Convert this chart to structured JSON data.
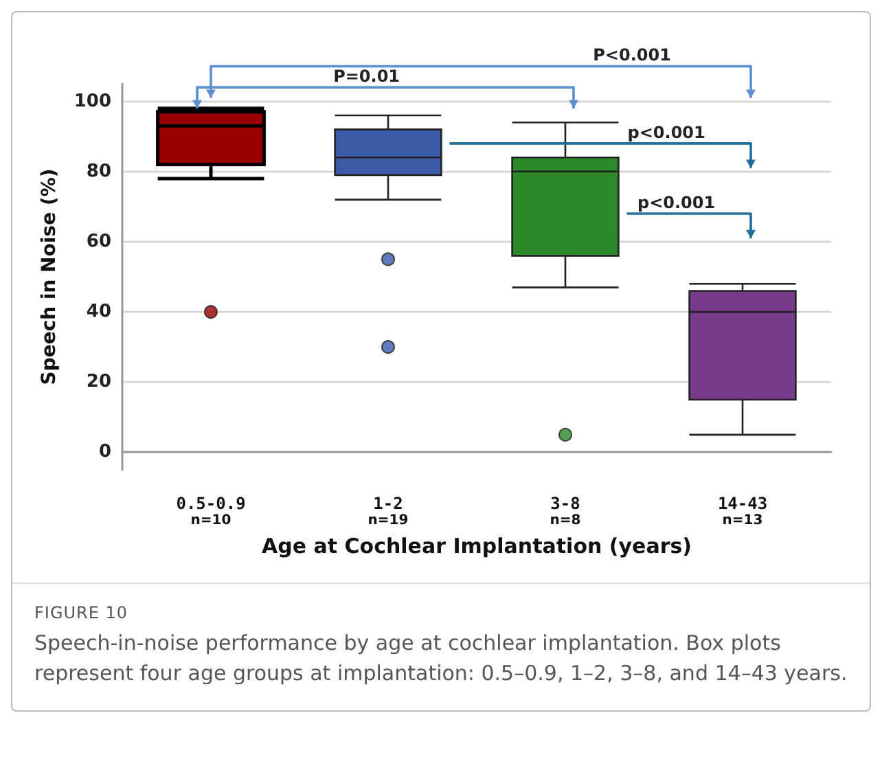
{
  "chart_data": {
    "type": "box",
    "xlabel": "Age at Cochlear Implantation (years)",
    "ylabel": "Speech in Noise (%)",
    "categories": [
      "0.5-0.9\nn=10",
      "1-2\nn=19",
      "3-8\nn=8",
      "14-43\nn=13"
    ],
    "colors": [
      "#990000",
      "#3b5ba9",
      "#2a8a2a",
      "#7a3a8c"
    ],
    "boxes": [
      {
        "low": 78,
        "q1": 82,
        "median": 93,
        "q3": 97,
        "high": 98,
        "outliers": [
          40
        ]
      },
      {
        "low": 72,
        "q1": 79,
        "median": 84,
        "q3": 92,
        "high": 96,
        "outliers": [
          55,
          30
        ]
      },
      {
        "low": 47,
        "q1": 56,
        "median": 80,
        "q3": 84,
        "high": 94,
        "outliers": [
          5
        ]
      },
      {
        "low": 5,
        "q1": 15,
        "median": 40,
        "q3": 46,
        "high": 48
      }
    ],
    "ylim": [
      -5,
      105
    ],
    "yticks": [
      0,
      20,
      40,
      60,
      80,
      100
    ],
    "grid": "y",
    "annotations": [
      "P<0.001",
      "P=0.01",
      "p<0.001",
      "p<0.001",
      "FIGURE 10",
      "Speech-in-noise performance by age at cochlear implantation. Box plots represent four age groups at implantation: 0.5–0.9, 1–2, 3–8, and 14–43 years."
    ]
  }
}
